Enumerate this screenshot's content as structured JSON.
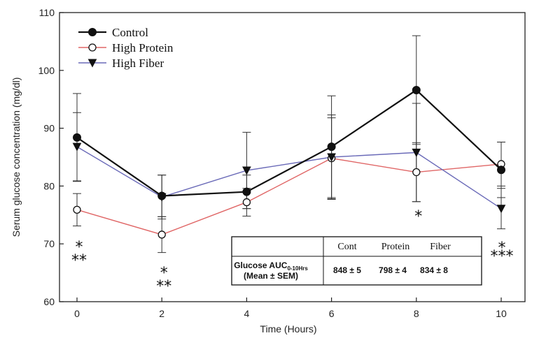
{
  "chart_data": {
    "type": "line",
    "title": "",
    "xlabel": "Time (Hours)",
    "ylabel": "Serum glucose concentration (mg/dl)",
    "xlim": [
      0,
      10
    ],
    "ylim": [
      60,
      110
    ],
    "x_ticks": [
      "0",
      "2",
      "4",
      "6",
      "8",
      "10"
    ],
    "y_ticks": [
      "60",
      "70",
      "80",
      "90",
      "100",
      "110"
    ],
    "grid": false,
    "legend_position": "top-left",
    "x": [
      0,
      2,
      4,
      6,
      8,
      10
    ],
    "series": [
      {
        "name": "Control",
        "color": "#111111",
        "marker": "filled-circle",
        "values": [
          88.4,
          78.3,
          79.0,
          86.8,
          96.6,
          82.8
        ],
        "error": [
          7.6,
          3.6,
          2.9,
          8.8,
          9.4,
          4.8
        ]
      },
      {
        "name": "High Protein",
        "color": "#e06666",
        "marker": "open-circle",
        "values": [
          75.9,
          71.6,
          77.2,
          84.8,
          82.4,
          83.8
        ],
        "error": [
          2.8,
          3.1,
          2.4,
          7.0,
          5.1,
          3.8
        ]
      },
      {
        "name": "High Fiber",
        "color": "#6a6ab8",
        "marker": "filled-triangle-down",
        "values": [
          86.8,
          78.1,
          82.7,
          85.0,
          85.8,
          76.1
        ],
        "error": [
          5.9,
          3.8,
          6.6,
          7.3,
          8.5,
          3.5
        ]
      }
    ],
    "annotations": [
      {
        "x": 0,
        "lines": [
          "*",
          "**"
        ]
      },
      {
        "x": 2,
        "lines": [
          "*",
          "**"
        ]
      },
      {
        "x": 8,
        "lines": [
          "*"
        ]
      },
      {
        "x": 10,
        "lines": [
          "*",
          "***"
        ]
      }
    ],
    "inset_table": {
      "headers": [
        "Cont",
        "Protein",
        "Fiber"
      ],
      "row_label_main": "Glucose AUC",
      "row_label_sub": "0-10Hrs",
      "row_label_line2": "(Mean ± SEM)",
      "values": [
        "848 ± 5",
        "798 ± 4",
        "834 ± 8"
      ]
    }
  }
}
